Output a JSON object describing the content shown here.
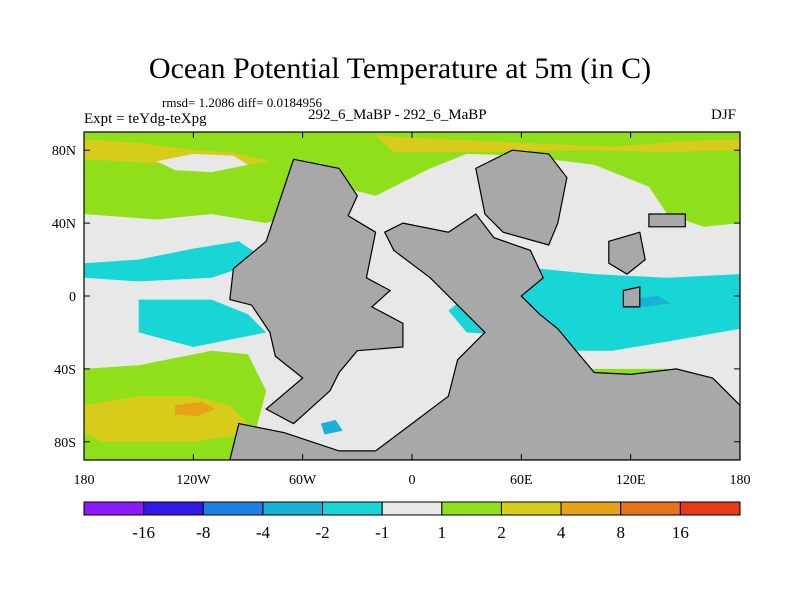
{
  "chart_data": {
    "type": "heatmap",
    "title": "Ocean Potential Temperature at 5m (in C)",
    "stats": "rmsd= 1.2086 diff= 0.0184956",
    "experiment": "Expt = teYdg-teXpg",
    "runs": "292_6_MaBP - 292_6_MaBP",
    "season": "DJF",
    "xlabel": "",
    "ylabel": "",
    "xlim": [
      -180,
      180
    ],
    "ylim": [
      -90,
      90
    ],
    "x_ticks": [
      {
        "value": -180,
        "label": "180"
      },
      {
        "value": -120,
        "label": "120W"
      },
      {
        "value": -60,
        "label": "60W"
      },
      {
        "value": 0,
        "label": "0"
      },
      {
        "value": 60,
        "label": "60E"
      },
      {
        "value": 120,
        "label": "120E"
      },
      {
        "value": 180,
        "label": "180"
      }
    ],
    "y_ticks": [
      {
        "value": 80,
        "label": "80N"
      },
      {
        "value": 40,
        "label": "40N"
      },
      {
        "value": 0,
        "label": "0"
      },
      {
        "value": -40,
        "label": "40S"
      },
      {
        "value": -80,
        "label": "80S"
      }
    ],
    "colorbar": {
      "colors": [
        "#8c1aff",
        "#3319e6",
        "#1f7fe6",
        "#19b2d6",
        "#19d6d6",
        "#e8e8e8",
        "#8fe01a",
        "#d6cc19",
        "#e6a31a",
        "#e67319",
        "#e63a19"
      ],
      "labels": [
        "-16",
        "-8",
        "-4",
        "-2",
        "-1",
        "1",
        "2",
        "4",
        "8",
        "16"
      ]
    },
    "land_color": "#a8a8a8",
    "regions": [
      {
        "name": "north-atlantic-warm",
        "level": "2",
        "color": "#8fe01a",
        "points": [
          [
            -180,
            90
          ],
          [
            -40,
            90
          ],
          [
            -40,
            60
          ],
          [
            -60,
            46
          ],
          [
            -80,
            40
          ],
          [
            -110,
            45
          ],
          [
            -140,
            42
          ],
          [
            -180,
            45
          ]
        ]
      },
      {
        "name": "north-pacific-band",
        "level": "4",
        "color": "#d6cc19",
        "points": [
          [
            -180,
            86
          ],
          [
            -150,
            84
          ],
          [
            -120,
            80
          ],
          [
            -100,
            79
          ],
          [
            -78,
            74
          ],
          [
            -100,
            70
          ],
          [
            -130,
            72
          ],
          [
            -160,
            74
          ],
          [
            -180,
            75
          ]
        ]
      },
      {
        "name": "north-central-gap",
        "level": "1",
        "color": "#e8e8e8",
        "points": [
          [
            -140,
            74
          ],
          [
            -120,
            78
          ],
          [
            -98,
            77
          ],
          [
            -90,
            72
          ],
          [
            -110,
            68
          ],
          [
            -130,
            69
          ]
        ]
      },
      {
        "name": "arctic-warm",
        "level": "2",
        "color": "#8fe01a",
        "points": [
          [
            -40,
            90
          ],
          [
            180,
            90
          ],
          [
            180,
            40
          ],
          [
            160,
            38
          ],
          [
            140,
            45
          ],
          [
            130,
            60
          ],
          [
            100,
            72
          ],
          [
            60,
            77
          ],
          [
            30,
            78
          ],
          [
            10,
            70
          ],
          [
            -20,
            55
          ],
          [
            -40,
            60
          ]
        ]
      },
      {
        "name": "eurasia-north-band",
        "level": "4",
        "color": "#d6cc19",
        "points": [
          [
            -20,
            88
          ],
          [
            20,
            86
          ],
          [
            60,
            84
          ],
          [
            110,
            82
          ],
          [
            150,
            85
          ],
          [
            180,
            86
          ],
          [
            180,
            80
          ],
          [
            140,
            79
          ],
          [
            90,
            80
          ],
          [
            40,
            79
          ],
          [
            -10,
            79
          ]
        ]
      },
      {
        "name": "central-pacific-cold",
        "level": "-1",
        "color": "#19d6d6",
        "points": [
          [
            -180,
            18
          ],
          [
            -150,
            20
          ],
          [
            -120,
            26
          ],
          [
            -95,
            30
          ],
          [
            -80,
            20
          ],
          [
            -110,
            10
          ],
          [
            -150,
            8
          ],
          [
            -180,
            10
          ]
        ]
      },
      {
        "name": "east-pacific-cold",
        "level": "-1",
        "color": "#19d6d6",
        "points": [
          [
            -150,
            -2
          ],
          [
            -110,
            -2
          ],
          [
            -90,
            -10
          ],
          [
            -80,
            -20
          ],
          [
            -120,
            -28
          ],
          [
            -150,
            -20
          ]
        ]
      },
      {
        "name": "south-pacific-warm",
        "level": "2",
        "color": "#8fe01a",
        "points": [
          [
            -180,
            -40
          ],
          [
            -150,
            -38
          ],
          [
            -110,
            -30
          ],
          [
            -90,
            -32
          ],
          [
            -80,
            -52
          ],
          [
            -90,
            -90
          ],
          [
            -180,
            -90
          ]
        ]
      },
      {
        "name": "south-pacific-band",
        "level": "4",
        "color": "#d6cc19",
        "points": [
          [
            -180,
            -60
          ],
          [
            -150,
            -55
          ],
          [
            -120,
            -55
          ],
          [
            -100,
            -60
          ],
          [
            -85,
            -75
          ],
          [
            -120,
            -80
          ],
          [
            -170,
            -80
          ],
          [
            -180,
            -75
          ]
        ]
      },
      {
        "name": "south-pacific-core",
        "level": "8",
        "color": "#e6a31a",
        "points": [
          [
            -130,
            -60
          ],
          [
            -115,
            -58
          ],
          [
            -108,
            -62
          ],
          [
            -118,
            -66
          ],
          [
            -130,
            -65
          ]
        ]
      },
      {
        "name": "indian-ocean-cold",
        "level": "-1",
        "color": "#19d6d6",
        "points": [
          [
            20,
            -8
          ],
          [
            40,
            8
          ],
          [
            70,
            15
          ],
          [
            100,
            12
          ],
          [
            140,
            10
          ],
          [
            180,
            12
          ],
          [
            180,
            -18
          ],
          [
            140,
            -25
          ],
          [
            110,
            -30
          ],
          [
            80,
            -30
          ],
          [
            60,
            -22
          ],
          [
            30,
            -20
          ]
        ]
      },
      {
        "name": "indian-ocean-core",
        "level": "-2",
        "color": "#19b2d6",
        "points": [
          [
            118,
            -2
          ],
          [
            135,
            0
          ],
          [
            142,
            -4
          ],
          [
            128,
            -6
          ],
          [
            116,
            -5
          ]
        ]
      },
      {
        "name": "southern-ocean-warm",
        "level": "2",
        "color": "#8fe01a",
        "points": [
          [
            65,
            -45
          ],
          [
            100,
            -40
          ],
          [
            140,
            -40
          ],
          [
            150,
            -55
          ],
          [
            110,
            -58
          ],
          [
            75,
            -56
          ]
        ]
      },
      {
        "name": "southern-ocean-band",
        "level": "4",
        "color": "#d6cc19",
        "points": [
          [
            75,
            -48
          ],
          [
            110,
            -45
          ],
          [
            140,
            -47
          ],
          [
            138,
            -52
          ],
          [
            110,
            -54
          ],
          [
            80,
            -52
          ]
        ]
      },
      {
        "name": "patagonia-cold",
        "level": "-2",
        "color": "#19b2d6",
        "points": [
          [
            -50,
            -70
          ],
          [
            -42,
            -68
          ],
          [
            -38,
            -74
          ],
          [
            -48,
            -76
          ]
        ]
      }
    ],
    "land": [
      {
        "name": "americas",
        "points": [
          [
            -65,
            75
          ],
          [
            -40,
            70
          ],
          [
            -30,
            55
          ],
          [
            -35,
            44
          ],
          [
            -20,
            35
          ],
          [
            -25,
            10
          ],
          [
            -12,
            3
          ],
          [
            -22,
            -6
          ],
          [
            -5,
            -15
          ],
          [
            -5,
            -28
          ],
          [
            -30,
            -30
          ],
          [
            -40,
            -42
          ],
          [
            -45,
            -52
          ],
          [
            -65,
            -70
          ],
          [
            -80,
            -62
          ],
          [
            -60,
            -45
          ],
          [
            -75,
            -33
          ],
          [
            -78,
            -20
          ],
          [
            -88,
            -5
          ],
          [
            -100,
            -2
          ],
          [
            -98,
            15
          ],
          [
            -80,
            30
          ],
          [
            -75,
            45
          ],
          [
            -70,
            60
          ]
        ]
      },
      {
        "name": "africa-antarctica",
        "points": [
          [
            -5,
            40
          ],
          [
            20,
            35
          ],
          [
            35,
            45
          ],
          [
            45,
            32
          ],
          [
            65,
            25
          ],
          [
            72,
            10
          ],
          [
            60,
            0
          ],
          [
            70,
            -10
          ],
          [
            80,
            -18
          ],
          [
            90,
            -30
          ],
          [
            100,
            -42
          ],
          [
            120,
            -43
          ],
          [
            145,
            -40
          ],
          [
            165,
            -45
          ],
          [
            180,
            -60
          ],
          [
            180,
            -90
          ],
          [
            -100,
            -90
          ],
          [
            -95,
            -70
          ],
          [
            -70,
            -75
          ],
          [
            -40,
            -85
          ],
          [
            -20,
            -85
          ],
          [
            0,
            -70
          ],
          [
            20,
            -55
          ],
          [
            25,
            -35
          ],
          [
            40,
            -20
          ],
          [
            30,
            -10
          ],
          [
            10,
            10
          ],
          [
            -10,
            25
          ],
          [
            -15,
            35
          ]
        ]
      },
      {
        "name": "eurasia",
        "points": [
          [
            35,
            70
          ],
          [
            55,
            80
          ],
          [
            75,
            78
          ],
          [
            85,
            65
          ],
          [
            80,
            40
          ],
          [
            75,
            28
          ],
          [
            50,
            35
          ],
          [
            40,
            45
          ]
        ]
      },
      {
        "name": "east-asia",
        "points": [
          [
            108,
            30
          ],
          [
            125,
            35
          ],
          [
            128,
            20
          ],
          [
            118,
            12
          ],
          [
            108,
            18
          ]
        ]
      },
      {
        "name": "japan",
        "points": [
          [
            130,
            45
          ],
          [
            150,
            45
          ],
          [
            150,
            38
          ],
          [
            130,
            38
          ]
        ]
      },
      {
        "name": "maritime-islands",
        "points": [
          [
            116,
            3
          ],
          [
            125,
            5
          ],
          [
            125,
            -6
          ],
          [
            116,
            -6
          ]
        ]
      }
    ]
  }
}
